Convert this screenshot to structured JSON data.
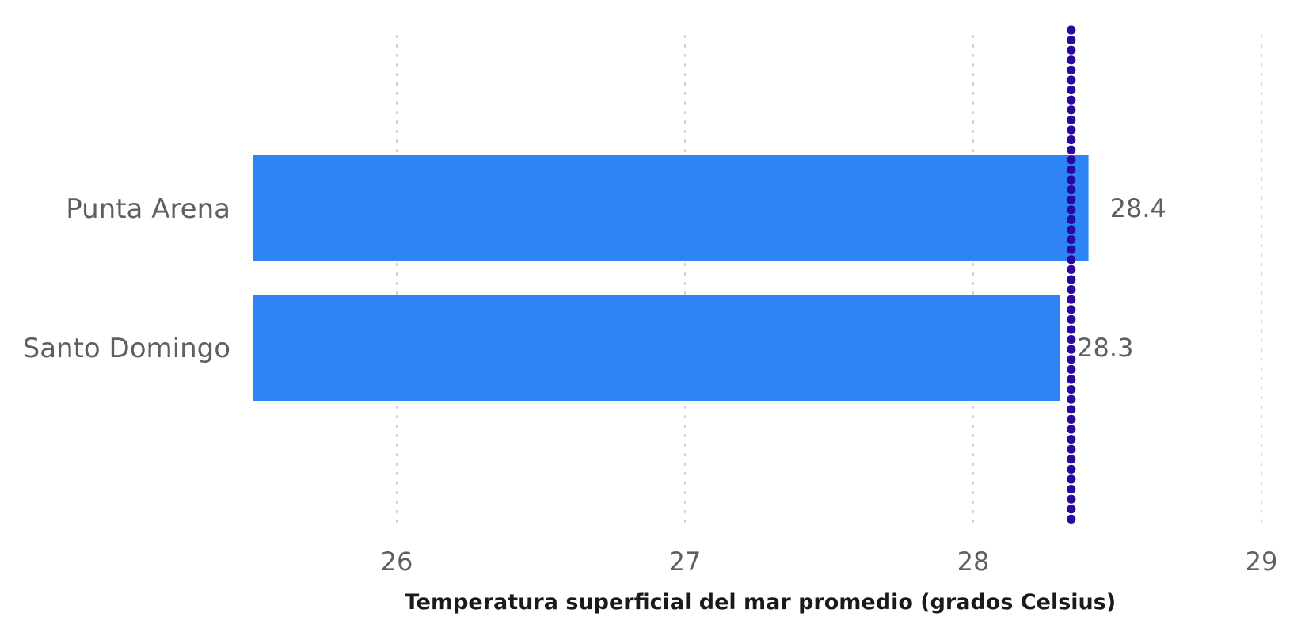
{
  "chart_data": {
    "type": "bar",
    "orientation": "horizontal",
    "categories": [
      "Punta Arena",
      "Santo Domingo"
    ],
    "values": [
      28.4,
      28.3
    ],
    "value_labels": [
      "28.4",
      "28.3"
    ],
    "title": "",
    "xlabel": "Temperatura superficial del mar promedio (grados Celsius)",
    "ylabel": "",
    "xlim": [
      25.5,
      29
    ],
    "xticks": [
      26,
      27,
      28,
      29
    ],
    "xtick_labels": [
      "26",
      "27",
      "28",
      "29"
    ],
    "reference_line": {
      "value": 28.34,
      "style": "dotted"
    },
    "grid": "vertical dotted",
    "legend": "none",
    "colors": {
      "bar": "#2f84f5",
      "reference_line": "#2a08a0",
      "grid": "#cfcfcf",
      "text": "#5f5f5f",
      "axis_title": "#1a1a1a"
    }
  }
}
